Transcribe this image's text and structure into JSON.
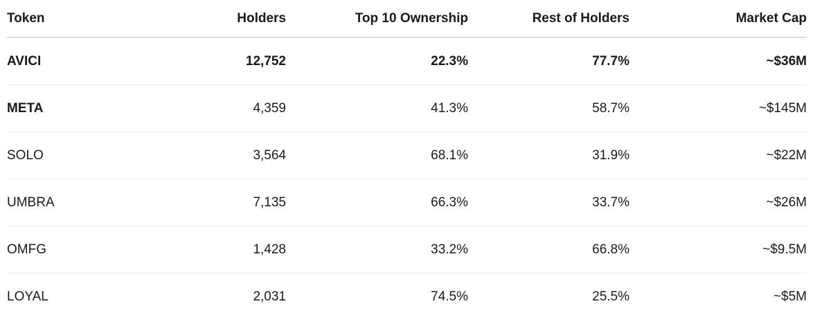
{
  "table": {
    "headers": [
      "Token",
      "Holders",
      "Top 10 Ownership",
      "Rest of Holders",
      "Market Cap"
    ],
    "rows": [
      {
        "token": "AVICI",
        "holders": "12,752",
        "top10": "22.3%",
        "rest": "77.7%",
        "market_cap": "~$36M",
        "bold_row": true,
        "bold_token": true
      },
      {
        "token": "META",
        "holders": "4,359",
        "top10": "41.3%",
        "rest": "58.7%",
        "market_cap": "~$145M",
        "bold_row": false,
        "bold_token": true
      },
      {
        "token": "SOLO",
        "holders": "3,564",
        "top10": "68.1%",
        "rest": "31.9%",
        "market_cap": "~$22M",
        "bold_row": false,
        "bold_token": false
      },
      {
        "token": "UMBRA",
        "holders": "7,135",
        "top10": "66.3%",
        "rest": "33.7%",
        "market_cap": "~$26M",
        "bold_row": false,
        "bold_token": false
      },
      {
        "token": "OMFG",
        "holders": "1,428",
        "top10": "33.2%",
        "rest": "66.8%",
        "market_cap": "~$9.5M",
        "bold_row": false,
        "bold_token": false
      },
      {
        "token": "LOYAL",
        "holders": "2,031",
        "top10": "74.5%",
        "rest": "25.5%",
        "market_cap": "~$5M",
        "bold_row": false,
        "bold_token": false
      }
    ]
  }
}
